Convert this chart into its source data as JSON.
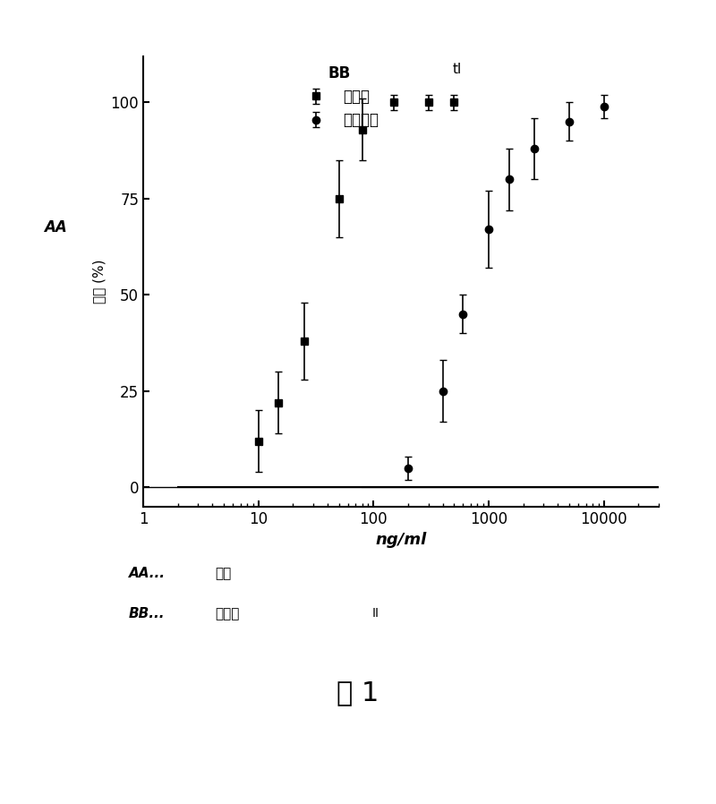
{
  "title": "",
  "xlabel": "ng/ml",
  "ylabel_chinese": "抑制",
  "ylabel_pct": "(%)",
  "ylabel_prefix": "AA",
  "legend_title": "BB",
  "legend_entry1": "化合物",
  "legend_entry2": "曲洛克斯",
  "annotation_tl": "tl",
  "xlim_log": [
    1,
    30000
  ],
  "ylim": [
    -5,
    112
  ],
  "yticks": [
    0,
    25,
    50,
    75,
    100
  ],
  "xticks": [
    1,
    10,
    100,
    1000,
    10000
  ],
  "compound_x": [
    10,
    15,
    25,
    50,
    80,
    150,
    300,
    500
  ],
  "compound_y": [
    12,
    22,
    38,
    75,
    93,
    100,
    100,
    100
  ],
  "compound_yerr": [
    8,
    8,
    10,
    10,
    8,
    2,
    2,
    2
  ],
  "trolox_x": [
    200,
    400,
    600,
    1000,
    1500,
    2500,
    5000,
    10000
  ],
  "trolox_y": [
    5,
    25,
    45,
    67,
    80,
    88,
    95,
    99
  ],
  "trolox_yerr": [
    3,
    8,
    5,
    10,
    8,
    8,
    5,
    3
  ],
  "bg_color": "#ffffff",
  "line_color": "#000000",
  "marker_color": "#000000",
  "footnote_line1_latin": "AA...",
  "footnote_line1_chinese": "抑制",
  "footnote_line2_latin": "BB...",
  "footnote_line2_chinese": "化合物",
  "footnote_line2_suffix": "  II",
  "figure_label_chinese": "图",
  "figure_label_num": " 1"
}
